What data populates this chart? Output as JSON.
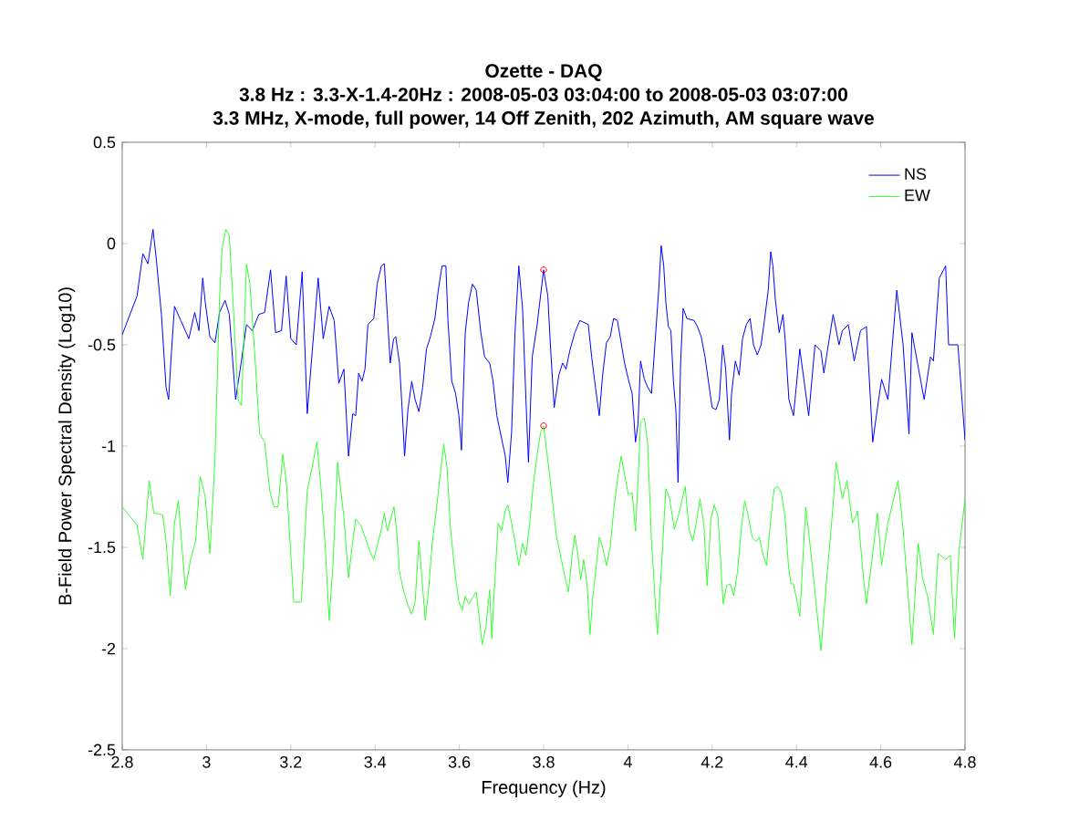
{
  "chart_data": {
    "type": "line",
    "title": "Ozette - DAQ",
    "subtitle": "3.8 Hz : 3.3-X-1.4-20Hz : 2008-05-03 03:04:00 to 2008-05-03 03:07:00",
    "annotations": [
      "3.3 MHz, X-mode, full power, 14 Off Zenith, 202 Azimuth, AM square wave"
    ],
    "xlabel": "Frequency (Hz)",
    "ylabel": "B-Field Power Spectral Density (Log10)",
    "xlim": [
      2.8,
      4.8
    ],
    "ylim": [
      -2.5,
      0.5
    ],
    "xticks": [
      2.8,
      3,
      3.2,
      3.4,
      3.6,
      3.8,
      4,
      4.2,
      4.4,
      4.6,
      4.8
    ],
    "yticks": [
      -2.5,
      -2,
      -1.5,
      -1,
      -0.5,
      0,
      0.5
    ],
    "legend": "top right",
    "series": [
      {
        "name": "NS",
        "color": "#0000ff",
        "x": [
          2.8,
          2.835,
          2.849,
          2.861,
          2.873,
          2.881,
          2.893,
          2.904,
          2.91,
          2.917,
          2.924,
          2.939,
          2.958,
          2.972,
          2.982,
          2.991,
          2.997,
          3.008,
          3.02,
          3.031,
          3.044,
          3.054,
          3.069,
          3.08,
          3.095,
          3.109,
          3.124,
          3.138,
          3.152,
          3.164,
          3.178,
          3.189,
          3.2,
          3.213,
          3.227,
          3.239,
          3.251,
          3.265,
          3.277,
          3.291,
          3.303,
          3.314,
          3.326,
          3.337,
          3.347,
          3.354,
          3.361,
          3.369,
          3.376,
          3.383,
          3.397,
          3.405,
          3.415,
          3.422,
          3.429,
          3.436,
          3.444,
          3.449,
          3.458,
          3.464,
          3.47,
          3.478,
          3.487,
          3.495,
          3.504,
          3.513,
          3.522,
          3.53,
          3.542,
          3.55,
          3.559,
          3.568,
          3.573,
          3.582,
          3.591,
          3.599,
          3.605,
          3.614,
          3.622,
          3.631,
          3.64,
          3.651,
          3.66,
          3.672,
          3.68,
          3.689,
          3.7,
          3.709,
          3.715,
          3.724,
          3.732,
          3.741,
          3.75,
          3.758,
          3.764,
          3.773,
          3.784,
          3.8,
          3.81,
          3.816,
          3.825,
          3.836,
          3.845,
          3.853,
          3.862,
          3.874,
          3.886,
          3.906,
          3.914,
          3.923,
          3.932,
          3.94,
          3.949,
          3.958,
          3.966,
          3.975,
          3.984,
          3.992,
          4.001,
          4.01,
          4.018,
          4.024,
          4.03,
          4.039,
          4.047,
          4.056,
          4.064,
          4.073,
          4.079,
          4.085,
          4.09,
          4.096,
          4.102,
          4.108,
          4.114,
          4.119,
          4.125,
          4.131,
          4.14,
          4.157,
          4.165,
          4.174,
          4.183,
          4.191,
          4.2,
          4.209,
          4.217,
          4.225,
          4.232,
          4.241,
          4.246,
          4.255,
          4.264,
          4.272,
          4.281,
          4.29,
          4.298,
          4.307,
          4.316,
          4.324,
          4.333,
          4.339,
          4.344,
          4.35,
          4.359,
          4.368,
          4.373,
          4.382,
          4.393,
          4.408,
          4.429,
          4.444,
          4.458,
          4.465,
          4.487,
          4.501,
          4.509,
          4.523,
          4.537,
          4.552,
          4.566,
          4.581,
          4.595,
          4.602,
          4.617,
          4.638,
          4.653,
          4.667,
          4.674,
          4.703,
          4.718,
          4.725,
          4.739,
          4.754,
          4.761,
          4.783,
          4.8
        ],
        "values": [
          -0.45,
          -0.26,
          -0.05,
          -0.1,
          0.07,
          -0.08,
          -0.35,
          -0.71,
          -0.77,
          -0.53,
          -0.31,
          -0.38,
          -0.47,
          -0.34,
          -0.43,
          -0.17,
          -0.29,
          -0.46,
          -0.49,
          -0.34,
          -0.28,
          -0.35,
          -0.77,
          -0.62,
          -0.4,
          -0.43,
          -0.35,
          -0.34,
          -0.13,
          -0.44,
          -0.43,
          -0.16,
          -0.47,
          -0.5,
          -0.14,
          -0.84,
          -0.53,
          -0.17,
          -0.47,
          -0.31,
          -0.38,
          -0.69,
          -0.62,
          -1.05,
          -0.84,
          -0.85,
          -0.64,
          -0.68,
          -0.62,
          -0.4,
          -0.37,
          -0.2,
          -0.11,
          -0.1,
          -0.35,
          -0.59,
          -0.47,
          -0.46,
          -0.59,
          -0.81,
          -1.05,
          -0.82,
          -0.68,
          -0.77,
          -0.83,
          -0.71,
          -0.52,
          -0.47,
          -0.37,
          -0.23,
          -0.11,
          -0.11,
          -0.38,
          -0.68,
          -0.74,
          -0.85,
          -1.02,
          -0.44,
          -0.29,
          -0.2,
          -0.23,
          -0.44,
          -0.56,
          -0.59,
          -0.68,
          -0.85,
          -0.96,
          -1.05,
          -1.18,
          -0.93,
          -0.44,
          -0.11,
          -0.32,
          -0.77,
          -1.08,
          -0.56,
          -0.41,
          -0.13,
          -0.26,
          -0.5,
          -0.81,
          -0.65,
          -0.59,
          -0.62,
          -0.53,
          -0.44,
          -0.38,
          -0.4,
          -0.56,
          -0.71,
          -0.85,
          -0.65,
          -0.49,
          -0.46,
          -0.37,
          -0.38,
          -0.49,
          -0.59,
          -0.67,
          -0.74,
          -0.98,
          -0.89,
          -0.58,
          -0.67,
          -0.71,
          -0.74,
          -0.5,
          -0.23,
          -0.01,
          -0.11,
          -0.29,
          -0.41,
          -0.43,
          -0.68,
          -0.83,
          -1.18,
          -0.59,
          -0.32,
          -0.37,
          -0.38,
          -0.41,
          -0.46,
          -0.56,
          -0.68,
          -0.81,
          -0.82,
          -0.77,
          -0.5,
          -0.62,
          -0.97,
          -0.74,
          -0.58,
          -0.65,
          -0.47,
          -0.4,
          -0.37,
          -0.5,
          -0.55,
          -0.5,
          -0.38,
          -0.23,
          -0.04,
          -0.11,
          -0.28,
          -0.44,
          -0.35,
          -0.47,
          -0.77,
          -0.85,
          -0.52,
          -0.85,
          -0.5,
          -0.53,
          -0.64,
          -0.35,
          -0.5,
          -0.43,
          -0.4,
          -0.58,
          -0.43,
          -0.41,
          -0.98,
          -0.77,
          -0.67,
          -0.77,
          -0.23,
          -0.5,
          -0.94,
          -0.44,
          -0.77,
          -0.56,
          -0.58,
          -0.17,
          -0.11,
          -0.5,
          -0.5,
          -0.97
        ]
      },
      {
        "name": "EW",
        "color": "#33ff33",
        "x": [
          2.8,
          2.835,
          2.849,
          2.864,
          2.875,
          2.896,
          2.904,
          2.914,
          2.924,
          2.933,
          2.943,
          2.95,
          2.962,
          2.974,
          2.985,
          2.997,
          3.008,
          3.02,
          3.031,
          3.037,
          3.046,
          3.054,
          3.063,
          3.075,
          3.083,
          3.095,
          3.103,
          3.115,
          3.126,
          3.138,
          3.15,
          3.16,
          3.17,
          3.181,
          3.19,
          3.199,
          3.207,
          3.225,
          3.239,
          3.253,
          3.262,
          3.271,
          3.282,
          3.291,
          3.3,
          3.311,
          3.326,
          3.337,
          3.347,
          3.354,
          3.366,
          3.39,
          3.397,
          3.415,
          3.422,
          3.429,
          3.437,
          3.445,
          3.452,
          3.458,
          3.467,
          3.477,
          3.487,
          3.495,
          3.504,
          3.51,
          3.519,
          3.527,
          3.536,
          3.545,
          3.553,
          3.563,
          3.571,
          3.579,
          3.591,
          3.599,
          3.607,
          3.614,
          3.622,
          3.631,
          3.64,
          3.648,
          3.654,
          3.663,
          3.672,
          3.677,
          3.683,
          3.692,
          3.7,
          3.709,
          3.715,
          3.724,
          3.732,
          3.741,
          3.75,
          3.758,
          3.767,
          3.775,
          3.784,
          3.793,
          3.8,
          3.807,
          3.819,
          3.83,
          3.842,
          3.851,
          3.859,
          3.868,
          3.874,
          3.881,
          3.888,
          3.895,
          3.903,
          3.91,
          3.917,
          3.925,
          3.932,
          3.94,
          3.949,
          3.958,
          3.966,
          3.975,
          3.984,
          3.992,
          4.001,
          4.01,
          4.018,
          4.024,
          4.03,
          4.039,
          4.047,
          4.056,
          4.064,
          4.07,
          4.079,
          4.09,
          4.099,
          4.11,
          4.119,
          4.128,
          4.136,
          4.145,
          4.154,
          4.162,
          4.171,
          4.18,
          4.188,
          4.197,
          4.205,
          4.214,
          4.22,
          4.226,
          4.234,
          4.243,
          4.251,
          4.26,
          4.269,
          4.277,
          4.286,
          4.295,
          4.304,
          4.312,
          4.32,
          4.329,
          4.338,
          4.347,
          4.356,
          4.364,
          4.373,
          4.381,
          4.387,
          4.393,
          4.408,
          4.422,
          4.436,
          4.458,
          4.472,
          4.487,
          4.494,
          4.509,
          4.52,
          4.533,
          4.545,
          4.559,
          4.566,
          4.581,
          4.592,
          4.602,
          4.617,
          4.641,
          4.653,
          4.664,
          4.674,
          4.689,
          4.699,
          4.711,
          4.725,
          4.736,
          4.754,
          4.765,
          4.775,
          4.786,
          4.8
        ],
        "values": [
          -1.3,
          -1.39,
          -1.56,
          -1.17,
          -1.33,
          -1.34,
          -1.47,
          -1.74,
          -1.38,
          -1.27,
          -1.53,
          -1.71,
          -1.56,
          -1.47,
          -1.15,
          -1.25,
          -1.53,
          -1.07,
          -0.26,
          -0.02,
          0.07,
          0.04,
          -0.29,
          -0.77,
          -0.8,
          -0.1,
          -0.2,
          -0.56,
          -0.94,
          -0.98,
          -1.22,
          -1.3,
          -1.3,
          -1.04,
          -1.19,
          -1.5,
          -1.77,
          -1.77,
          -1.22,
          -1.08,
          -0.98,
          -1.19,
          -1.5,
          -1.86,
          -1.59,
          -1.08,
          -1.35,
          -1.65,
          -1.47,
          -1.36,
          -1.39,
          -1.53,
          -1.56,
          -1.41,
          -1.33,
          -1.42,
          -1.36,
          -1.3,
          -1.44,
          -1.62,
          -1.71,
          -1.78,
          -1.83,
          -1.77,
          -1.47,
          -1.62,
          -1.86,
          -1.71,
          -1.47,
          -1.32,
          -1.17,
          -0.99,
          -1.11,
          -1.41,
          -1.65,
          -1.77,
          -1.81,
          -1.74,
          -1.78,
          -1.75,
          -1.72,
          -1.86,
          -1.98,
          -1.89,
          -1.71,
          -1.95,
          -1.71,
          -1.38,
          -1.42,
          -1.32,
          -1.29,
          -1.38,
          -1.47,
          -1.59,
          -1.48,
          -1.54,
          -1.38,
          -1.2,
          -1.05,
          -0.93,
          -0.9,
          -1.02,
          -1.23,
          -1.44,
          -1.56,
          -1.65,
          -1.72,
          -1.53,
          -1.44,
          -1.53,
          -1.66,
          -1.56,
          -1.68,
          -1.93,
          -1.74,
          -1.59,
          -1.45,
          -1.5,
          -1.59,
          -1.5,
          -1.32,
          -1.17,
          -1.05,
          -1.14,
          -1.24,
          -1.23,
          -1.42,
          -1.17,
          -0.88,
          -0.86,
          -0.99,
          -1.47,
          -1.74,
          -1.93,
          -1.62,
          -1.21,
          -1.26,
          -1.41,
          -1.35,
          -1.27,
          -1.2,
          -1.41,
          -1.47,
          -1.38,
          -1.26,
          -1.38,
          -1.69,
          -1.36,
          -1.29,
          -1.35,
          -1.56,
          -1.78,
          -1.69,
          -1.68,
          -1.74,
          -1.62,
          -1.41,
          -1.27,
          -1.35,
          -1.45,
          -1.47,
          -1.45,
          -1.53,
          -1.59,
          -1.38,
          -1.21,
          -1.2,
          -1.23,
          -1.35,
          -1.59,
          -1.68,
          -1.68,
          -1.84,
          -1.3,
          -1.56,
          -2.01,
          -1.65,
          -1.29,
          -1.08,
          -1.26,
          -1.17,
          -1.38,
          -1.32,
          -1.65,
          -1.78,
          -1.53,
          -1.33,
          -1.59,
          -1.38,
          -1.17,
          -1.41,
          -1.71,
          -1.98,
          -1.48,
          -1.65,
          -1.74,
          -1.93,
          -1.53,
          -1.56,
          -1.54,
          -1.95,
          -1.51,
          -1.26
        ]
      },
      {
        "type": "scatter",
        "marker": "circle",
        "color": "#ff0000",
        "x": [
          3.8,
          3.8
        ],
        "values": [
          -0.13,
          -0.9
        ]
      }
    ]
  }
}
